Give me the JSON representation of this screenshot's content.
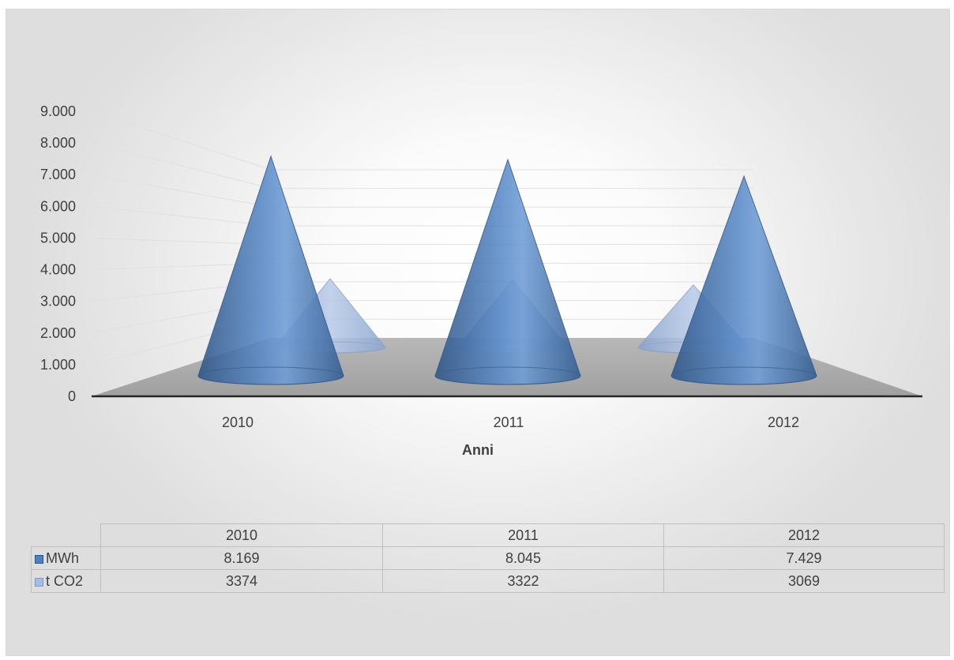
{
  "chart_data": {
    "type": "bar",
    "subtype": "3d-cone",
    "categories": [
      "2010",
      "2011",
      "2012"
    ],
    "series": [
      {
        "name": "MWh",
        "values": [
          8169,
          8045,
          7429
        ],
        "display": [
          "8.169",
          "8.045",
          "7.429"
        ],
        "color": "#4f81bd"
      },
      {
        "name": "t CO2",
        "values": [
          3374,
          3322,
          3069
        ],
        "display": [
          "3374",
          "3322",
          "3069"
        ],
        "color": "#a7bde1"
      }
    ],
    "xlabel": "Anni",
    "ylabel": "",
    "ylim": [
      0,
      9000
    ],
    "yticks": [
      0,
      1000,
      2000,
      3000,
      4000,
      5000,
      6000,
      7000,
      8000,
      9000
    ],
    "ytick_labels": [
      "0",
      "1.000",
      "2.000",
      "3.000",
      "4.000",
      "5.000",
      "6.000",
      "7.000",
      "8.000",
      "9.000"
    ],
    "grid": true,
    "legend": "data-table"
  }
}
